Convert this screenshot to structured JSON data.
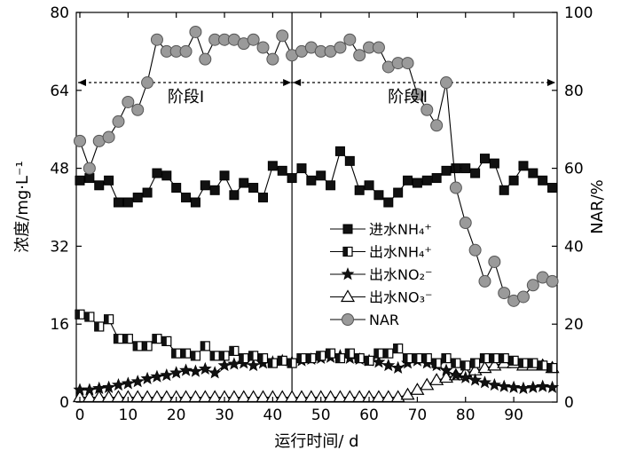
{
  "chart_data": {
    "type": "line",
    "xlabel": "运行时间/ d",
    "ylabel_left": "浓度/mg·L⁻¹",
    "ylabel_right": "NAR/%",
    "xlim": [
      0,
      99
    ],
    "ylim_left": [
      0,
      80
    ],
    "ylim_right": [
      0,
      100
    ],
    "x_ticks": [
      0,
      10,
      20,
      30,
      40,
      50,
      60,
      70,
      80,
      90
    ],
    "y_left_ticks": [
      0,
      16,
      32,
      48,
      64,
      80
    ],
    "y_right_ticks": [
      0,
      20,
      40,
      60,
      80,
      100
    ],
    "grid": false,
    "legend_position": "center-right",
    "stage_divider_x": 44,
    "stage_arrow_y_right": 82,
    "stages": [
      {
        "label": "阶段Ⅰ",
        "x": 22
      },
      {
        "label": "阶段Ⅱ",
        "x": 68
      }
    ],
    "series": [
      {
        "name": "进水NH₄⁺",
        "axis": "left",
        "marker": "square-filled",
        "x": [
          0,
          2,
          4,
          6,
          8,
          10,
          12,
          14,
          16,
          18,
          20,
          22,
          24,
          26,
          28,
          30,
          32,
          34,
          36,
          38,
          40,
          42,
          44,
          46,
          48,
          50,
          52,
          54,
          56,
          58,
          60,
          62,
          64,
          66,
          68,
          70,
          72,
          74,
          76,
          78,
          80,
          82,
          84,
          86,
          88,
          90,
          92,
          94,
          96,
          98
        ],
        "values": [
          45.5,
          46,
          44.5,
          45.5,
          41,
          41,
          42,
          43,
          47,
          46.5,
          44,
          42,
          41,
          44.5,
          43.5,
          46.5,
          42.5,
          45,
          44,
          42,
          48.5,
          47.5,
          46,
          48,
          45.5,
          46.5,
          44.5,
          51.5,
          49.5,
          43.5,
          44.5,
          42.5,
          41,
          43,
          45.5,
          45,
          45.5,
          46,
          47.5,
          48,
          48,
          47,
          50,
          49,
          43.5,
          45.5,
          48.5,
          47,
          45.5,
          44
        ]
      },
      {
        "name": "出水NH₄⁺",
        "axis": "left",
        "marker": "square-half",
        "x": [
          0,
          2,
          4,
          6,
          8,
          10,
          12,
          14,
          16,
          18,
          20,
          22,
          24,
          26,
          28,
          30,
          32,
          34,
          36,
          38,
          40,
          42,
          44,
          46,
          48,
          50,
          52,
          54,
          56,
          58,
          60,
          62,
          64,
          66,
          68,
          70,
          72,
          74,
          76,
          78,
          80,
          82,
          84,
          86,
          88,
          90,
          92,
          94,
          96,
          98
        ],
        "values": [
          18,
          17.5,
          15.5,
          17,
          13,
          13,
          11.5,
          11.5,
          13,
          12.5,
          10,
          10,
          9.5,
          11.5,
          9.5,
          9.5,
          10.5,
          9,
          9.5,
          9,
          8,
          8.5,
          8,
          9,
          9,
          9.5,
          10,
          9,
          10,
          9,
          8.5,
          10,
          10,
          11,
          9,
          9,
          9,
          8,
          9,
          8,
          7.5,
          8,
          9,
          9,
          9,
          8.5,
          8,
          8,
          7.5,
          7
        ]
      },
      {
        "name": "出水NO₂⁻",
        "axis": "left",
        "marker": "star-filled",
        "x": [
          0,
          2,
          4,
          6,
          8,
          10,
          12,
          14,
          16,
          18,
          20,
          22,
          24,
          26,
          28,
          30,
          32,
          34,
          36,
          38,
          40,
          42,
          44,
          46,
          48,
          50,
          52,
          54,
          56,
          58,
          60,
          62,
          64,
          66,
          68,
          70,
          72,
          74,
          76,
          78,
          80,
          82,
          84,
          86,
          88,
          90,
          92,
          94,
          96,
          98
        ],
        "values": [
          2.5,
          2.5,
          2.8,
          3,
          3.5,
          3.8,
          4.2,
          4.8,
          5.2,
          5.5,
          6,
          6.5,
          6.3,
          6.8,
          6,
          7.5,
          7.8,
          8,
          7.5,
          8,
          8.2,
          8.5,
          8.2,
          8.5,
          8.8,
          9,
          9.2,
          9.5,
          9,
          8.8,
          8.5,
          8.2,
          7.5,
          7,
          8,
          8.5,
          8,
          7.5,
          6.5,
          5.5,
          5,
          4.5,
          4,
          3.5,
          3.2,
          3,
          2.8,
          3,
          3.2,
          3
        ]
      },
      {
        "name": "出水NO₃⁻",
        "axis": "left",
        "marker": "triangle-open",
        "x": [
          0,
          2,
          4,
          6,
          8,
          10,
          12,
          14,
          16,
          18,
          20,
          22,
          24,
          26,
          28,
          30,
          32,
          34,
          36,
          38,
          40,
          42,
          44,
          46,
          48,
          50,
          52,
          54,
          56,
          58,
          60,
          62,
          64,
          66,
          68,
          70,
          72,
          74,
          76,
          78,
          80,
          82,
          84,
          86,
          88,
          90,
          92,
          94,
          96,
          98
        ],
        "values": [
          1,
          1,
          1,
          1,
          1,
          1,
          1,
          1,
          1,
          1,
          1,
          1,
          1,
          1,
          1,
          1,
          1,
          1,
          1,
          1,
          1,
          1,
          1,
          1,
          1,
          1,
          1,
          1,
          1,
          1,
          1,
          1,
          1,
          1,
          1.5,
          2.5,
          3.5,
          4.5,
          5,
          5.5,
          6,
          6.5,
          7,
          7.5,
          8,
          8,
          7.5,
          7.5,
          7.5,
          7
        ]
      },
      {
        "name": "NAR",
        "axis": "right",
        "marker": "circle-gray",
        "x": [
          0,
          2,
          4,
          6,
          8,
          10,
          12,
          14,
          16,
          18,
          20,
          22,
          24,
          26,
          28,
          30,
          32,
          34,
          36,
          38,
          40,
          42,
          44,
          46,
          48,
          50,
          52,
          54,
          56,
          58,
          60,
          62,
          64,
          66,
          68,
          70,
          72,
          74,
          76,
          78,
          80,
          82,
          84,
          86,
          88,
          90,
          92,
          94,
          96,
          98
        ],
        "values": [
          67,
          60,
          67,
          68,
          72,
          77,
          75,
          82,
          93,
          90,
          90,
          90,
          95,
          88,
          93,
          93,
          93,
          92,
          93,
          91,
          88,
          94,
          89,
          90,
          91,
          90,
          90,
          91,
          93,
          89,
          91,
          91,
          86,
          87,
          87,
          79,
          75,
          71,
          82,
          55,
          46,
          39,
          31,
          36,
          28,
          26,
          27,
          30,
          32,
          31
        ]
      }
    ]
  }
}
